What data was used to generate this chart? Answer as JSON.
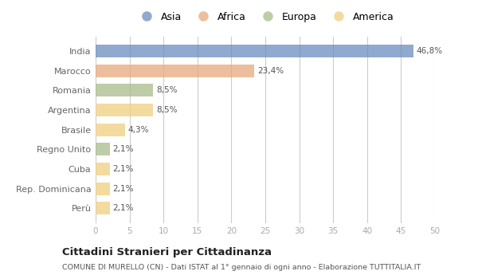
{
  "categories": [
    "India",
    "Marocco",
    "Romania",
    "Argentina",
    "Brasile",
    "Regno Unito",
    "Cuba",
    "Rep. Dominicana",
    "Perù"
  ],
  "values": [
    46.8,
    23.4,
    8.5,
    8.5,
    4.3,
    2.1,
    2.1,
    2.1,
    2.1
  ],
  "labels": [
    "46,8%",
    "23,4%",
    "8,5%",
    "8,5%",
    "4,3%",
    "2,1%",
    "2,1%",
    "2,1%",
    "2,1%"
  ],
  "colors": [
    "#6b8cbf",
    "#e8a87c",
    "#a8bc8a",
    "#f0d080",
    "#f0d080",
    "#a8bc8a",
    "#f0d080",
    "#f0d080",
    "#f0d080"
  ],
  "legend_labels": [
    "Asia",
    "Africa",
    "Europa",
    "America"
  ],
  "legend_colors": [
    "#6b8cbf",
    "#e8a87c",
    "#a8bc8a",
    "#f0d080"
  ],
  "title": "Cittadini Stranieri per Cittadinanza",
  "subtitle": "COMUNE DI MURELLO (CN) - Dati ISTAT al 1° gennaio di ogni anno - Elaborazione TUTTITALIA.IT",
  "xlim": [
    0,
    50
  ],
  "xticks": [
    0,
    5,
    10,
    15,
    20,
    25,
    30,
    35,
    40,
    45,
    50
  ],
  "background_color": "#ffffff",
  "plot_bg_color": "#ffffff",
  "bar_alpha": 0.75,
  "bar_height": 0.65
}
